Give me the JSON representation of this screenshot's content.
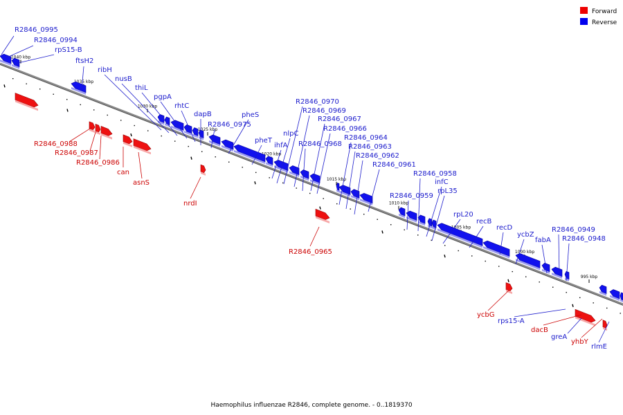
{
  "legend": [
    {
      "label": "Forward",
      "color": "#ee0000"
    },
    {
      "label": "Reverse",
      "color": "#0000ee"
    }
  ],
  "caption": "Haemophilus influenzae R2846, complete genome. - 0..1819370",
  "ticks": [
    "1040 kbp",
    "1035 kbp",
    "1030 kbp",
    "1025 kbp",
    "1020 kbp",
    "1015 kbp",
    "1010 kbp",
    "1005 kbp",
    "1000 kbp",
    "995 kbp"
  ],
  "genes": [
    {
      "label": "R2846_0995",
      "strand": "reverse"
    },
    {
      "label": "R2846_0994",
      "strand": "reverse"
    },
    {
      "label": "rpS15-B",
      "strand": "reverse"
    },
    {
      "label": "ftsH2",
      "strand": "reverse"
    },
    {
      "label": "ribH",
      "strand": "reverse"
    },
    {
      "label": "nusB",
      "strand": "reverse"
    },
    {
      "label": "thiL",
      "strand": "reverse"
    },
    {
      "label": "pgpA",
      "strand": "reverse"
    },
    {
      "label": "rhtC",
      "strand": "reverse"
    },
    {
      "label": "dapB",
      "strand": "reverse"
    },
    {
      "label": "R2846_0975",
      "strand": "reverse"
    },
    {
      "label": "pheS",
      "strand": "reverse"
    },
    {
      "label": "pheT",
      "strand": "reverse"
    },
    {
      "label": "ihfA",
      "strand": "reverse"
    },
    {
      "label": "nlpC",
      "strand": "reverse"
    },
    {
      "label": "R2846_0970",
      "strand": "reverse"
    },
    {
      "label": "R2846_0969",
      "strand": "reverse"
    },
    {
      "label": "R2846_0968",
      "strand": "reverse"
    },
    {
      "label": "R2846_0967",
      "strand": "reverse"
    },
    {
      "label": "R2846_0966",
      "strand": "reverse"
    },
    {
      "label": "R2846_0964",
      "strand": "reverse"
    },
    {
      "label": "R2846_0963",
      "strand": "reverse"
    },
    {
      "label": "R2846_0962",
      "strand": "reverse"
    },
    {
      "label": "R2846_0961",
      "strand": "reverse"
    },
    {
      "label": "R2846_0959",
      "strand": "reverse"
    },
    {
      "label": "R2846_0958",
      "strand": "reverse"
    },
    {
      "label": "infC",
      "strand": "reverse"
    },
    {
      "label": "rpL35",
      "strand": "reverse"
    },
    {
      "label": "rpL20",
      "strand": "reverse"
    },
    {
      "label": "recB",
      "strand": "reverse"
    },
    {
      "label": "recD",
      "strand": "reverse"
    },
    {
      "label": "ycbZ",
      "strand": "reverse"
    },
    {
      "label": "fabA",
      "strand": "reverse"
    },
    {
      "label": "R2846_0949",
      "strand": "reverse"
    },
    {
      "label": "R2846_0948",
      "strand": "reverse"
    },
    {
      "label": "rps15-A",
      "strand": "reverse"
    },
    {
      "label": "greA",
      "strand": "reverse"
    },
    {
      "label": "rlmE",
      "strand": "reverse"
    },
    {
      "label": "R2846_0988",
      "strand": "forward"
    },
    {
      "label": "R2846_0987",
      "strand": "forward"
    },
    {
      "label": "R2846_0986",
      "strand": "forward"
    },
    {
      "label": "can",
      "strand": "forward"
    },
    {
      "label": "asnS",
      "strand": "forward"
    },
    {
      "label": "nrdI",
      "strand": "forward"
    },
    {
      "label": "R2846_0965",
      "strand": "forward"
    },
    {
      "label": "ycbG",
      "strand": "forward"
    },
    {
      "label": "dacB",
      "strand": "forward"
    },
    {
      "label": "yhbY",
      "strand": "forward"
    }
  ]
}
